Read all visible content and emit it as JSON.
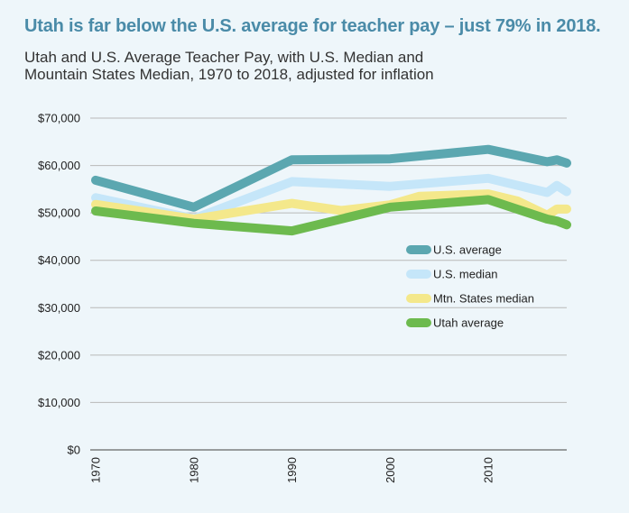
{
  "headline": "Utah is far below the U.S. average for teacher pay – just 79% in 2018.",
  "headline_color": "#4a8ba8",
  "chart_data": {
    "type": "line",
    "title": "Utah and U.S. Average Teacher Pay, with U.S. Median and Mountain States Median, 1970 to 2018, adjusted for inflation",
    "title_lines": [
      "Utah and U.S. Average Teacher Pay, with U.S. Median and",
      "Mountain States Median, 1970 to 2018, adjusted for inflation"
    ],
    "xlabel": "",
    "ylabel": "",
    "xlim": [
      1970,
      2018
    ],
    "ylim": [
      0,
      70000
    ],
    "x_ticks": [
      1970,
      1980,
      1990,
      2000,
      2010
    ],
    "y_ticks": [
      0,
      10000,
      20000,
      30000,
      40000,
      50000,
      60000,
      70000
    ],
    "y_tick_labels": [
      "$0",
      "$10,000",
      "$20,000",
      "$30,000",
      "$40,000",
      "$50,000",
      "$60,000",
      "$70,000"
    ],
    "grid": true,
    "legend_position": "center-right",
    "series": [
      {
        "name": "U.S. median",
        "color": "#c5e6f9",
        "points": [
          [
            1970,
            53200
          ],
          [
            1980,
            48800
          ],
          [
            1990,
            56600
          ],
          [
            2000,
            55600
          ],
          [
            2010,
            57300
          ],
          [
            2016,
            54300
          ],
          [
            2017,
            55800
          ],
          [
            2018,
            54500
          ]
        ]
      },
      {
        "name": "Mtn. States median",
        "color": "#f4e88b",
        "points": [
          [
            1970,
            51800
          ],
          [
            1980,
            48700
          ],
          [
            1990,
            52000
          ],
          [
            1995,
            50500
          ],
          [
            2000,
            51700
          ],
          [
            2003,
            53500
          ],
          [
            2010,
            54000
          ],
          [
            2013,
            52500
          ],
          [
            2016,
            49500
          ],
          [
            2017,
            50800
          ],
          [
            2018,
            50800
          ]
        ]
      },
      {
        "name": "U.S. average",
        "color": "#5ba7b0",
        "points": [
          [
            1970,
            56900
          ],
          [
            1980,
            51200
          ],
          [
            1990,
            61200
          ],
          [
            2000,
            61400
          ],
          [
            2010,
            63400
          ],
          [
            2016,
            60800
          ],
          [
            2017,
            61200
          ],
          [
            2018,
            60500
          ]
        ]
      },
      {
        "name": "Utah average",
        "color": "#6dba4e",
        "points": [
          [
            1970,
            50400
          ],
          [
            1980,
            47800
          ],
          [
            1990,
            46200
          ],
          [
            2000,
            51200
          ],
          [
            2010,
            52800
          ],
          [
            2016,
            48700
          ],
          [
            2017,
            48300
          ],
          [
            2018,
            47500
          ]
        ]
      }
    ],
    "legend_order": [
      "U.S. average",
      "U.S. median",
      "Mtn. States median",
      "Utah average"
    ]
  }
}
